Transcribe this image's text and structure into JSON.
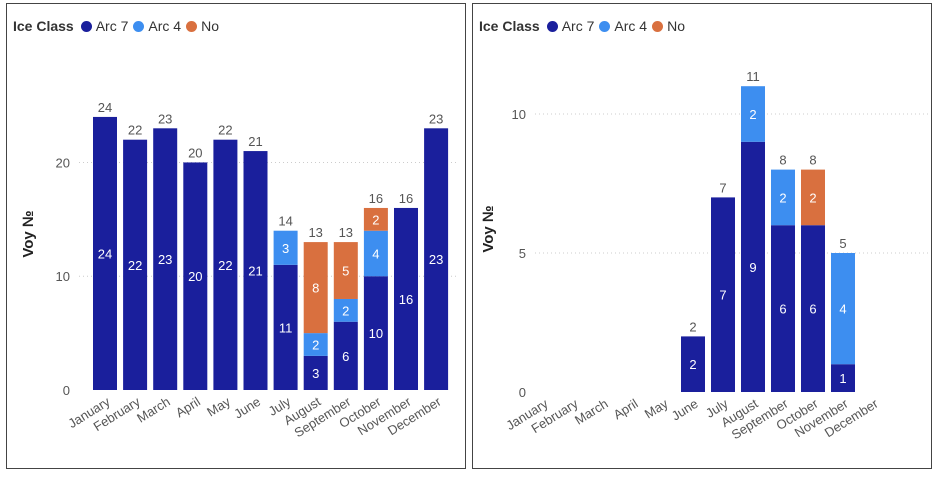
{
  "colors": {
    "arc7": "#1a1f9c",
    "arc4": "#3d8ef0",
    "no": "#d9703f",
    "text": "#555555",
    "grid": "#cccccc"
  },
  "chart_data": [
    {
      "type": "bar",
      "stacked": true,
      "legend_title": "Ice Class",
      "ylabel": "Voy №",
      "ylim": [
        0,
        27
      ],
      "yticks": [
        0,
        10,
        20
      ],
      "categories": [
        "January",
        "February",
        "March",
        "April",
        "May",
        "June",
        "July",
        "August",
        "September",
        "October",
        "November",
        "December"
      ],
      "series": [
        {
          "name": "Arc 7",
          "color_key": "arc7",
          "values": [
            24,
            22,
            23,
            20,
            22,
            21,
            11,
            3,
            6,
            10,
            16,
            23
          ]
        },
        {
          "name": "Arc 4",
          "color_key": "arc4",
          "values": [
            null,
            null,
            null,
            null,
            null,
            null,
            3,
            2,
            2,
            4,
            null,
            null
          ]
        },
        {
          "name": "No",
          "color_key": "no",
          "values": [
            null,
            null,
            null,
            null,
            null,
            null,
            null,
            8,
            5,
            2,
            null,
            null
          ]
        }
      ],
      "totals": [
        24,
        22,
        23,
        20,
        22,
        21,
        14,
        13,
        13,
        16,
        16,
        23
      ]
    },
    {
      "type": "bar",
      "stacked": true,
      "legend_title": "Ice Class",
      "ylabel": "Voy №",
      "ylim": [
        0,
        12
      ],
      "yticks": [
        0,
        5,
        10
      ],
      "categories": [
        "January",
        "February",
        "March",
        "April",
        "May",
        "June",
        "July",
        "August",
        "September",
        "October",
        "November",
        "December"
      ],
      "series": [
        {
          "name": "Arc 7",
          "color_key": "arc7",
          "values": [
            null,
            null,
            null,
            null,
            null,
            2,
            7,
            9,
            6,
            6,
            1,
            null
          ]
        },
        {
          "name": "Arc 4",
          "color_key": "arc4",
          "values": [
            null,
            null,
            null,
            null,
            null,
            null,
            null,
            2,
            2,
            null,
            4,
            null
          ]
        },
        {
          "name": "No",
          "color_key": "no",
          "values": [
            null,
            null,
            null,
            null,
            null,
            null,
            null,
            null,
            null,
            2,
            null,
            null
          ]
        }
      ],
      "totals": [
        null,
        null,
        null,
        null,
        null,
        2,
        7,
        11,
        8,
        8,
        5,
        null
      ]
    }
  ]
}
